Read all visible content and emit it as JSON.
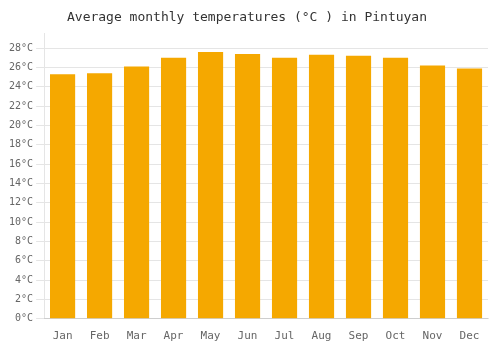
{
  "chart_data": {
    "type": "bar",
    "title": "Average monthly temperatures (°C ) in Pintuyan",
    "categories": [
      "Jan",
      "Feb",
      "Mar",
      "Apr",
      "May",
      "Jun",
      "Jul",
      "Aug",
      "Sep",
      "Oct",
      "Nov",
      "Dec"
    ],
    "values": [
      25.3,
      25.4,
      26.1,
      27.0,
      27.6,
      27.4,
      27.0,
      27.3,
      27.2,
      27.0,
      26.2,
      25.9
    ],
    "color": "#F5A800",
    "ylim": [
      0,
      29.5
    ],
    "yticks": [
      {
        "value": 0,
        "label": "0°C"
      },
      {
        "value": 2,
        "label": "2°C"
      },
      {
        "value": 4,
        "label": "4°C"
      },
      {
        "value": 6,
        "label": "6°C"
      },
      {
        "value": 8,
        "label": "8°C"
      },
      {
        "value": 10,
        "label": "10°C"
      },
      {
        "value": 12,
        "label": "12°C"
      },
      {
        "value": 14,
        "label": "14°C"
      },
      {
        "value": 16,
        "label": "16°C"
      },
      {
        "value": 18,
        "label": "18°C"
      },
      {
        "value": 20,
        "label": "20°C"
      },
      {
        "value": 22,
        "label": "22°C"
      },
      {
        "value": 24,
        "label": "24°C"
      },
      {
        "value": 26,
        "label": "26°C"
      },
      {
        "value": 28,
        "label": "28°C"
      }
    ],
    "grid": true
  }
}
